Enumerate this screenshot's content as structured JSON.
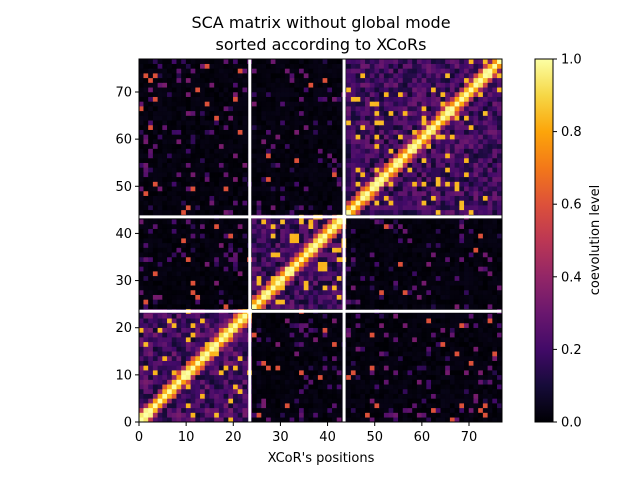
{
  "chart_data": {
    "type": "heatmap",
    "title_lines": [
      "SCA matrix without global mode",
      "sorted according to XCoRs"
    ],
    "xlabel": "XCoR's positions",
    "ylabel": "",
    "xlim": [
      0,
      77
    ],
    "ylim": [
      0,
      77
    ],
    "x_ticks": [
      0,
      10,
      20,
      30,
      40,
      50,
      60,
      70
    ],
    "y_ticks": [
      0,
      10,
      20,
      30,
      40,
      50,
      60,
      70
    ],
    "matrix_size": 77,
    "colormap": "inferno",
    "grid": false,
    "blocks": [
      {
        "start": 0,
        "end": 23,
        "diag_value": 1.0,
        "within_level": 0.22
      },
      {
        "start": 24,
        "end": 43,
        "diag_value": 1.0,
        "within_level": 0.2
      },
      {
        "start": 44,
        "end": 76,
        "diag_value": 1.0,
        "within_level": 0.2
      }
    ],
    "block_separators": [
      23.5,
      43.5
    ],
    "separator_color": "#ffffff",
    "off_block_level": 0.04,
    "colorbar": {
      "label": "coevolution level",
      "range": [
        0.0,
        1.0
      ],
      "ticks": [
        0.0,
        0.2,
        0.4,
        0.6,
        0.8,
        1.0
      ],
      "tick_labels": [
        "0.0",
        "0.2",
        "0.4",
        "0.6",
        "0.8",
        "1.0"
      ]
    }
  }
}
